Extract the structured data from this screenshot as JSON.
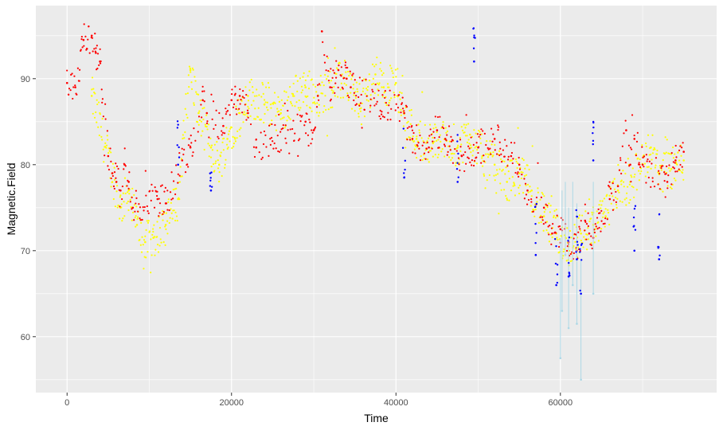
{
  "chart_data": {
    "type": "scatter",
    "xlabel": "Time",
    "ylabel": "Magnetic.Field",
    "xlim": [
      -3800,
      79000
    ],
    "ylim": [
      53.5,
      98.5
    ],
    "x_ticks": [
      0,
      20000,
      40000,
      60000
    ],
    "y_ticks": [
      60,
      70,
      80,
      90
    ],
    "grid": true,
    "legend": "none",
    "colors": {
      "panel": "#ebebeb",
      "grid_major": "#ffffff",
      "red": "#ff0000",
      "yellow": "#ffff00",
      "blue": "#0000ff",
      "lightblue": "#add8e6",
      "tick": "#333333",
      "tick_label": "#4d4d4d"
    },
    "series": [
      {
        "color": "red",
        "x": [
          0,
          1000,
          2000,
          3000,
          3500,
          4000,
          5000,
          5500,
          6000,
          6500,
          7000,
          7500,
          8000,
          11000,
          12000,
          14000,
          15000,
          16500,
          17000,
          19000,
          20000,
          21000,
          22000,
          23000,
          29000,
          30000,
          30500,
          31000,
          32000,
          33000,
          34000,
          34500,
          41000,
          42000,
          44000,
          45000,
          46000,
          48000,
          50000,
          52000,
          54000,
          55000,
          56000,
          58000,
          59000,
          60000,
          61000,
          62000,
          63000,
          63500,
          64000,
          66000,
          67000,
          68000,
          68500,
          69000,
          70000,
          73000,
          74000,
          75000
        ],
        "y": [
          89.5,
          89.0,
          94.5,
          95.0,
          93.0,
          92.0,
          81.0,
          79.0,
          78.0,
          77.0,
          80.0,
          78.0,
          75.0,
          76.0,
          75.5,
          80.5,
          82.0,
          87.5,
          86.0,
          84.5,
          87.5,
          88.0,
          86.0,
          82.0,
          85.0,
          84.0,
          88.0,
          95.5,
          89.0,
          91.0,
          90.0,
          89.0,
          86.0,
          83.0,
          82.0,
          84.0,
          83.0,
          81.0,
          82.0,
          83.0,
          81.0,
          80.0,
          77.0,
          75.0,
          72.0,
          72.5,
          71.0,
          70.0,
          73.5,
          72.0,
          71.5,
          76.0,
          77.5,
          84.0,
          80.0,
          83.0,
          80.0,
          78.0,
          80.5,
          81.5
        ]
      },
      {
        "color": "yellow",
        "x": [
          3000,
          5500,
          6500,
          7500,
          8500,
          9500,
          10500,
          12000,
          13500,
          15000,
          16000,
          17500,
          18500,
          19500,
          21000,
          22000,
          24000,
          26000,
          27500,
          29000,
          30500,
          34000,
          35500,
          36500,
          37500,
          38500,
          40000,
          41000,
          42500,
          44500,
          46000,
          47500,
          49000,
          50500,
          52000,
          53500,
          55000,
          56500,
          58000,
          59500,
          61000,
          62500,
          64000,
          65500,
          67000,
          68500,
          70000,
          71000,
          72000,
          73500,
          75000
        ],
        "y": [
          88.0,
          79.0,
          75.0,
          77.0,
          73.0,
          71.0,
          71.5,
          73.0,
          76.0,
          91.0,
          86.0,
          82.0,
          80.0,
          83.0,
          86.0,
          88.0,
          87.0,
          86.0,
          88.0,
          89.0,
          88.0,
          90.0,
          87.0,
          88.0,
          90.5,
          89.0,
          89.5,
          86.0,
          83.0,
          82.5,
          83.0,
          82.0,
          83.5,
          81.0,
          80.0,
          78.0,
          79.0,
          77.0,
          74.0,
          72.0,
          70.5,
          72.0,
          73.0,
          74.0,
          77.0,
          78.0,
          80.0,
          82.0,
          79.0,
          79.5,
          80.5
        ]
      },
      {
        "color": "lightblue",
        "x": [
          60000,
          60200,
          60600,
          61000,
          61500,
          62000,
          62500,
          64000
        ],
        "y": [
          57.5,
          63.0,
          69.5,
          61.0,
          66.0,
          61.5,
          55.0,
          65.0
        ]
      },
      {
        "color": "blue",
        "x": [
          13500,
          17500,
          41000,
          47500,
          49500,
          57000,
          59500,
          61000,
          62000,
          62500,
          64000,
          69000,
          72000
        ],
        "y": [
          80.0,
          77.0,
          78.5,
          78.0,
          92.0,
          69.5,
          66.0,
          67.0,
          69.0,
          65.0,
          80.5,
          70.0,
          69.0
        ]
      }
    ]
  }
}
